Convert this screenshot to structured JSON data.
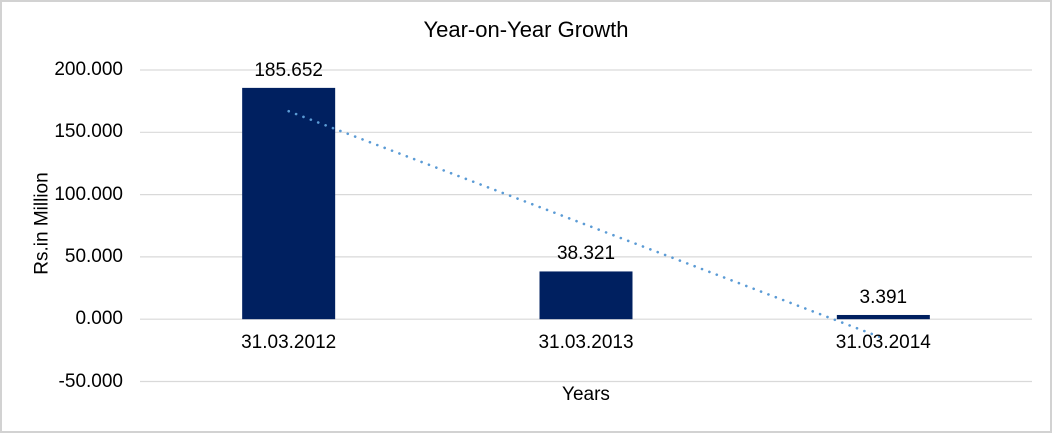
{
  "chart": {
    "title": "Year-on-Year Growth",
    "x_axis_title": "Years",
    "y_axis_title": "Rs.in Million",
    "y_tick_labels": [
      "200.000",
      "150.000",
      "100.000",
      "50.000",
      "0.000",
      "-50.000"
    ]
  },
  "chart_data": {
    "type": "bar",
    "title": "Year-on-Year Growth",
    "xlabel": "Years",
    "ylabel": "Rs.in Million",
    "categories": [
      "31.03.2012",
      "31.03.2013",
      "31.03.2014"
    ],
    "values": [
      185.652,
      38.321,
      3.391
    ],
    "data_labels": [
      "185.652",
      "38.321",
      "3.391"
    ],
    "ylim": [
      -50,
      200
    ],
    "y_tick_interval": 50,
    "grid": true,
    "legend": false,
    "bar_color": "#002060",
    "gridline_color": "#d9d9d9",
    "trendline": {
      "type": "linear",
      "style": "dotted",
      "color": "#5B9BD5"
    }
  }
}
